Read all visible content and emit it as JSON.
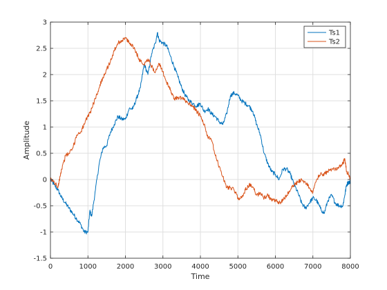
{
  "chart_data": {
    "type": "line",
    "title": "",
    "xlabel": "Time",
    "ylabel": "Amplitude",
    "xlim": [
      0,
      8000
    ],
    "ylim": [
      -1.5,
      3
    ],
    "xticks": [
      0,
      1000,
      2000,
      3000,
      4000,
      5000,
      6000,
      7000,
      8000
    ],
    "xtick_labels": [
      "0",
      "1000",
      "2000",
      "3000",
      "4000",
      "5000",
      "6000",
      "7000",
      "8000"
    ],
    "yticks": [
      -1.5,
      -1,
      -0.5,
      0,
      0.5,
      1,
      1.5,
      2,
      2.5,
      3
    ],
    "ytick_labels": [
      "-1.5",
      "-1",
      "-0.5",
      "0",
      "0.5",
      "1",
      "1.5",
      "2",
      "2.5",
      "3"
    ],
    "grid": true,
    "legend_position": "top-right",
    "series": [
      {
        "name": "Ts1",
        "color": "#0072BD",
        "x": [
          0,
          100,
          200,
          300,
          400,
          500,
          600,
          700,
          800,
          900,
          1000,
          1050,
          1100,
          1200,
          1300,
          1400,
          1500,
          1600,
          1700,
          1800,
          1900,
          2000,
          2100,
          2200,
          2300,
          2400,
          2500,
          2600,
          2700,
          2800,
          2850,
          2900,
          3000,
          3100,
          3200,
          3300,
          3400,
          3500,
          3600,
          3700,
          3800,
          3900,
          4000,
          4100,
          4200,
          4300,
          4400,
          4500,
          4600,
          4700,
          4800,
          4900,
          5000,
          5100,
          5200,
          5300,
          5400,
          5500,
          5600,
          5700,
          5800,
          5900,
          6000,
          6100,
          6200,
          6300,
          6400,
          6500,
          6600,
          6700,
          6800,
          6900,
          7000,
          7100,
          7200,
          7300,
          7400,
          7500,
          7600,
          7700,
          7800,
          7850,
          7900,
          7950,
          8000
        ],
        "values": [
          0.0,
          -0.1,
          -0.2,
          -0.35,
          -0.45,
          -0.55,
          -0.65,
          -0.75,
          -0.85,
          -1.0,
          -1.0,
          -0.6,
          -0.7,
          -0.2,
          0.3,
          0.6,
          0.65,
          0.9,
          1.05,
          1.2,
          1.15,
          1.15,
          1.35,
          1.35,
          1.55,
          1.75,
          2.2,
          2.0,
          2.4,
          2.6,
          2.8,
          2.65,
          2.6,
          2.55,
          2.35,
          2.15,
          1.95,
          1.75,
          1.6,
          1.5,
          1.45,
          1.4,
          1.45,
          1.3,
          1.35,
          1.25,
          1.2,
          1.1,
          1.05,
          1.25,
          1.6,
          1.65,
          1.6,
          1.5,
          1.45,
          1.4,
          1.3,
          1.05,
          0.85,
          0.5,
          0.3,
          0.15,
          0.1,
          0.0,
          0.2,
          0.2,
          0.1,
          -0.1,
          -0.25,
          -0.45,
          -0.55,
          -0.45,
          -0.35,
          -0.4,
          -0.55,
          -0.65,
          -0.4,
          -0.3,
          -0.45,
          -0.5,
          -0.5,
          -0.3,
          -0.1,
          -0.05,
          -0.05
        ]
      },
      {
        "name": "Ts2",
        "color": "#D95319",
        "x": [
          0,
          100,
          200,
          250,
          300,
          400,
          500,
          600,
          700,
          800,
          900,
          1000,
          1100,
          1200,
          1300,
          1400,
          1500,
          1600,
          1700,
          1800,
          1900,
          2000,
          2100,
          2200,
          2300,
          2400,
          2500,
          2600,
          2700,
          2800,
          2900,
          3000,
          3100,
          3200,
          3300,
          3400,
          3500,
          3600,
          3700,
          3800,
          3900,
          4000,
          4100,
          4200,
          4300,
          4400,
          4500,
          4600,
          4700,
          4800,
          4900,
          5000,
          5100,
          5200,
          5300,
          5400,
          5500,
          5600,
          5700,
          5800,
          5900,
          6000,
          6100,
          6200,
          6300,
          6400,
          6500,
          6600,
          6700,
          6800,
          6900,
          7000,
          7100,
          7200,
          7300,
          7400,
          7500,
          7600,
          7700,
          7800,
          7850,
          7900,
          7950,
          8000
        ],
        "values": [
          0.0,
          -0.05,
          -0.15,
          0.05,
          0.2,
          0.45,
          0.5,
          0.6,
          0.85,
          0.9,
          1.05,
          1.2,
          1.35,
          1.55,
          1.75,
          1.95,
          2.1,
          2.25,
          2.45,
          2.6,
          2.65,
          2.7,
          2.6,
          2.55,
          2.4,
          2.25,
          2.2,
          2.3,
          2.15,
          2.05,
          2.2,
          2.05,
          1.85,
          1.7,
          1.55,
          1.55,
          1.55,
          1.5,
          1.45,
          1.4,
          1.3,
          1.2,
          1.05,
          0.8,
          0.75,
          0.45,
          0.25,
          0.05,
          -0.15,
          -0.15,
          -0.2,
          -0.35,
          -0.35,
          -0.2,
          -0.1,
          -0.15,
          -0.3,
          -0.25,
          -0.35,
          -0.3,
          -0.4,
          -0.4,
          -0.45,
          -0.4,
          -0.3,
          -0.2,
          -0.1,
          -0.05,
          0.0,
          -0.05,
          -0.15,
          -0.25,
          0.0,
          0.1,
          0.1,
          0.15,
          0.2,
          0.2,
          0.25,
          0.3,
          0.4,
          0.15,
          0.1,
          0.0
        ]
      }
    ]
  }
}
